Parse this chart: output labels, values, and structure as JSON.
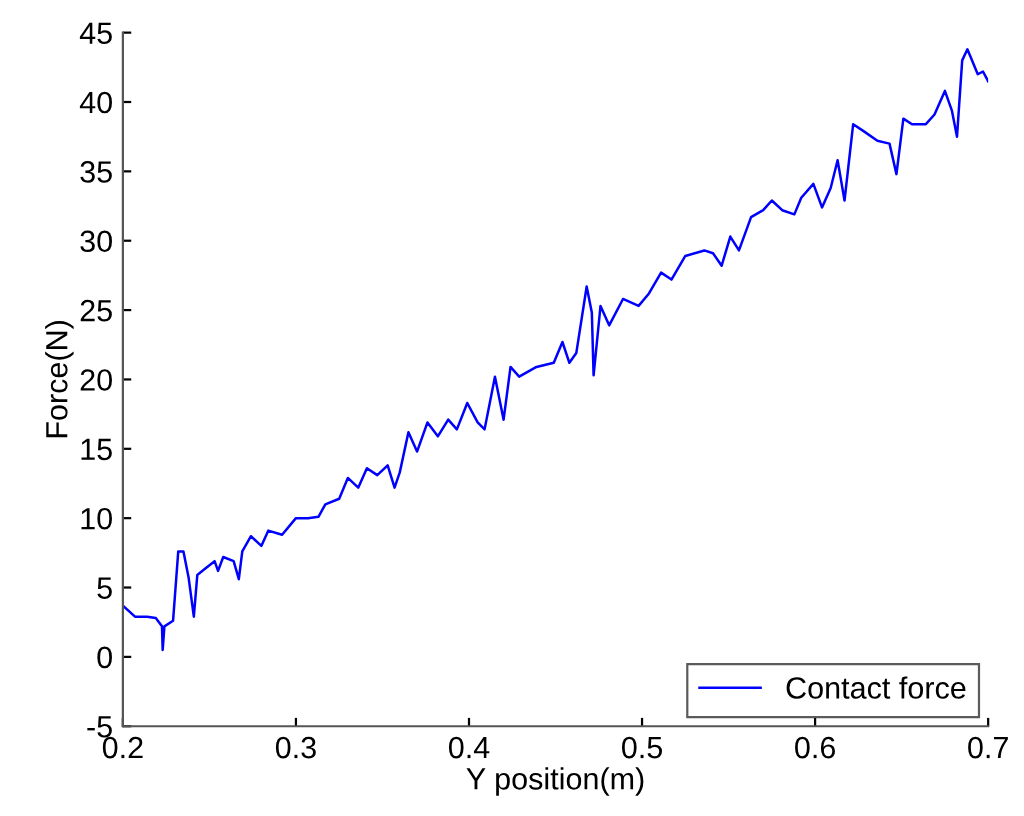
{
  "chart_data": {
    "type": "line",
    "xlabel": "Y position(m)",
    "ylabel": "Force(N)",
    "xlim": [
      0.2,
      0.7
    ],
    "xticks": [
      0.2,
      0.3,
      0.4,
      0.5,
      0.6,
      0.7
    ],
    "ylim": [
      -5,
      45
    ],
    "yticks": [
      -5,
      0,
      5,
      10,
      15,
      20,
      25,
      30,
      35,
      40,
      45
    ],
    "grid": false,
    "legend": "bottom right",
    "marker": "none",
    "line_style": "solid",
    "series": [
      {
        "name": "Contact force",
        "color": "#0000ff",
        "x": [
          0.2,
          0.207,
          0.214,
          0.219,
          0.2226,
          0.223,
          0.224,
          0.229,
          0.232,
          0.235,
          0.238,
          0.241,
          0.243,
          0.248,
          0.253,
          0.255,
          0.258,
          0.264,
          0.267,
          0.269,
          0.274,
          0.28,
          0.284,
          0.292,
          0.3,
          0.307,
          0.313,
          0.317,
          0.325,
          0.33,
          0.336,
          0.341,
          0.347,
          0.353,
          0.357,
          0.36,
          0.365,
          0.37,
          0.376,
          0.382,
          0.388,
          0.393,
          0.399,
          0.405,
          0.409,
          0.415,
          0.42,
          0.424,
          0.429,
          0.439,
          0.449,
          0.454,
          0.458,
          0.462,
          0.468,
          0.471,
          0.472,
          0.476,
          0.481,
          0.489,
          0.498,
          0.504,
          0.511,
          0.517,
          0.525,
          0.536,
          0.541,
          0.546,
          0.551,
          0.556,
          0.563,
          0.57,
          0.575,
          0.581,
          0.588,
          0.592,
          0.599,
          0.604,
          0.609,
          0.613,
          0.617,
          0.622,
          0.628,
          0.636,
          0.643,
          0.647,
          0.651,
          0.656,
          0.664,
          0.669,
          0.675,
          0.679,
          0.682,
          0.685,
          0.688,
          0.694,
          0.697,
          0.7
        ],
        "values": [
          3.7,
          2.9,
          2.9,
          2.8,
          2.2,
          0.5,
          2.2,
          2.6,
          7.6,
          7.6,
          5.7,
          2.9,
          5.9,
          6.4,
          6.9,
          6.2,
          7.2,
          6.9,
          5.6,
          7.6,
          8.7,
          8.0,
          9.1,
          8.8,
          10.0,
          10.0,
          10.1,
          11.0,
          11.4,
          12.9,
          12.2,
          13.6,
          13.1,
          13.8,
          12.2,
          13.3,
          16.2,
          14.8,
          16.9,
          15.9,
          17.1,
          16.4,
          18.3,
          16.9,
          16.4,
          20.2,
          17.1,
          20.9,
          20.2,
          20.9,
          21.2,
          22.7,
          21.2,
          21.9,
          26.7,
          24.8,
          20.3,
          25.3,
          23.9,
          25.8,
          25.3,
          26.2,
          27.7,
          27.2,
          28.9,
          29.3,
          29.1,
          28.2,
          30.3,
          29.3,
          31.7,
          32.2,
          32.9,
          32.2,
          31.9,
          33.1,
          34.1,
          32.4,
          33.8,
          35.8,
          32.9,
          38.4,
          37.9,
          37.2,
          37.0,
          34.8,
          38.8,
          38.4,
          38.4,
          39.1,
          40.8,
          39.4,
          37.5,
          43.0,
          43.8,
          42.0,
          42.2,
          41.5
        ]
      }
    ]
  }
}
